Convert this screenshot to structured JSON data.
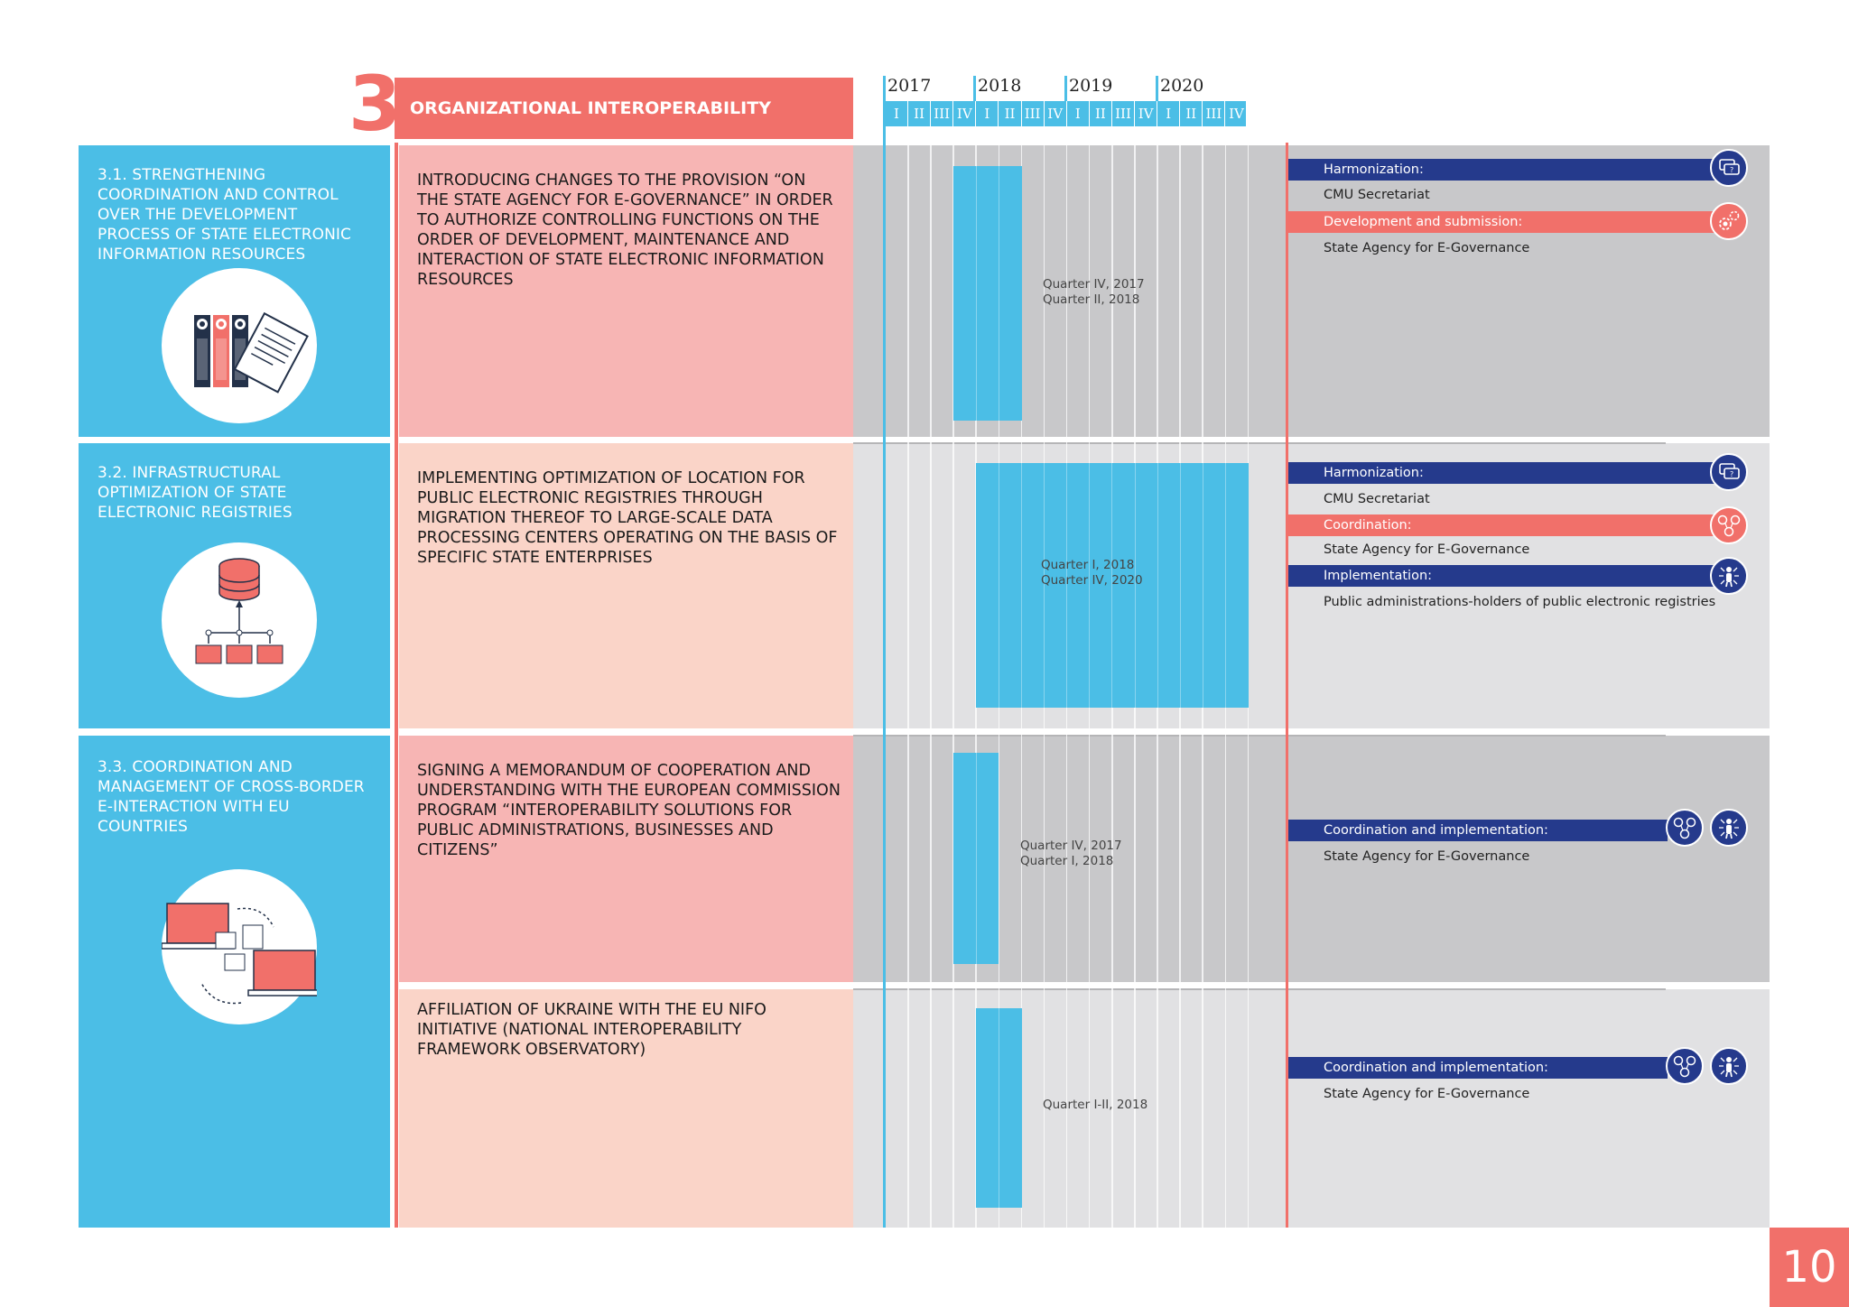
{
  "section": {
    "number": "3",
    "title": "ORGANIZATIONAL INTEROPERABILITY"
  },
  "timeline": {
    "years": [
      "2017",
      "2018",
      "2019",
      "2020"
    ],
    "quarters": [
      "I",
      "II",
      "III",
      "IV",
      "I",
      "II",
      "III",
      "IV",
      "I",
      "II",
      "III",
      "IV",
      "I",
      "II",
      "III",
      "IV"
    ]
  },
  "tasks": [
    {
      "title": "3.1. STRENGTHENING COORDINATION AND CONTROL OVER THE DEVELOPMENT PROCESS OF STATE ELECTRONIC INFORMATION RESOURCES",
      "icon": "binders-document-icon"
    },
    {
      "title": "3.2. INFRASTRUCTURAL OPTIMIZATION OF STATE ELECTRONIC REGISTRIES",
      "icon": "database-folders-icon"
    },
    {
      "title": "3.3. COORDINATION AND MANAGEMENT OF CROSS-BORDER E-INTERACTION WITH EU COUNTRIES",
      "icon": "laptops-exchange-icon"
    }
  ],
  "activities": [
    {
      "text": "INTRODUCING CHANGES TO THE PROVISION “ON THE STATE AGENCY FOR E-GOVERNANCE” IN ORDER TO AUTHORIZE CONTROLLING FUNCTIONS ON THE ORDER OF DEVELOPMENT, MAINTENANCE AND INTERACTION OF STATE ELECTRONIC INFORMATION RESOURCES",
      "period_line1": "Quarter IV, 2017",
      "period_line2": "Quarter II, 2018",
      "start_quarter": 3,
      "end_quarter": 5,
      "roles": [
        {
          "label": "Harmonization:",
          "style": "navy",
          "icon": "chat-question-icon",
          "who": "CMU Secretariat"
        },
        {
          "label": "Development and submission:",
          "style": "red",
          "icon": "gears-icon",
          "who": "State Agency for E-Governance"
        }
      ]
    },
    {
      "text": "IMPLEMENTING OPTIMIZATION OF LOCATION FOR PUBLIC ELECTRONIC REGISTRIES THROUGH MIGRATION THEREOF TO LARGE-SCALE DATA PROCESSING CENTERS OPERATING ON THE BASIS OF SPECIFIC STATE ENTERPRISES",
      "period_line1": "Quarter I, 2018",
      "period_line2": "Quarter IV, 2020",
      "start_quarter": 4,
      "end_quarter": 15,
      "roles": [
        {
          "label": "Harmonization:",
          "style": "navy",
          "icon": "chat-question-icon",
          "who": "CMU Secretariat"
        },
        {
          "label": "Coordination:",
          "style": "red",
          "icon": "people-network-icon",
          "who": "State Agency for E-Governance"
        },
        {
          "label": "Implementation:",
          "style": "navy",
          "icon": "person-arrows-icon",
          "who": "Public administrations-holders of public electronic registries"
        }
      ]
    },
    {
      "text": "SIGNING A MEMORANDUM OF COOPERATION AND UNDERSTANDING WITH THE EUROPEAN COMMISSION PROGRAM “INTEROPERABILITY SOLUTIONS FOR PUBLIC ADMINISTRATIONS, BUSINESSES AND CITIZENS”",
      "period_line1": "Quarter IV, 2017",
      "period_line2": "Quarter I, 2018",
      "start_quarter": 3,
      "end_quarter": 4,
      "roles": [
        {
          "label": "Coordination and implementation:",
          "style": "navy",
          "icon": "people-network-icon",
          "who": "State Agency for E-Governance"
        }
      ]
    },
    {
      "text": "AFFILIATION OF UKRAINE WITH THE EU NIFO INITIATIVE (NATIONAL INTEROPERABILITY FRAMEWORK OBSERVATORY)",
      "period_line1": "Quarter I-II, 2018",
      "period_line2": "",
      "start_quarter": 4,
      "end_quarter": 5,
      "roles": [
        {
          "label": "Coordination and implementation:",
          "style": "navy",
          "icon": "people-network-icon",
          "who": "State Agency for E-Governance"
        }
      ]
    }
  ],
  "page_number": "10",
  "colors": {
    "blue": "#4bbee6",
    "coral": "#f1706a",
    "navy": "#253a8c",
    "pink": "#f7b5b4",
    "peach": "#fad4c8",
    "grey_dark": "#c8c8ca",
    "grey_light": "#e1e1e3"
  }
}
